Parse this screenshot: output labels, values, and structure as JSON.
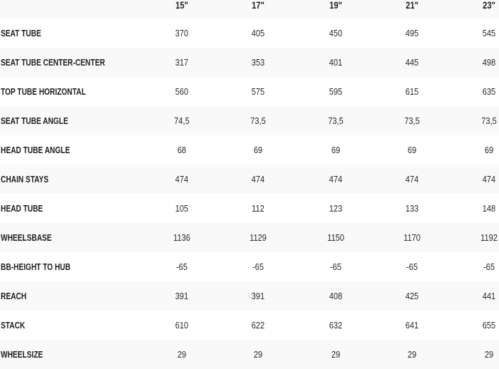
{
  "sizes": [
    "15\"",
    "17\"",
    "19\"",
    "21\"",
    "23\""
  ],
  "rows": [
    {
      "label": "SEAT TUBE",
      "values": [
        "370",
        "405",
        "450",
        "495",
        "545"
      ]
    },
    {
      "label": "SEAT TUBE CENTER-CENTER",
      "values": [
        "317",
        "353",
        "401",
        "445",
        "498"
      ]
    },
    {
      "label": "TOP TUBE HORIZONTAL",
      "values": [
        "560",
        "575",
        "595",
        "615",
        "635"
      ]
    },
    {
      "label": "SEAT TUBE ANGLE",
      "values": [
        "74,5",
        "73,5",
        "73,5",
        "73,5",
        "73,5"
      ]
    },
    {
      "label": "HEAD TUBE ANGLE",
      "values": [
        "68",
        "69",
        "69",
        "69",
        "69"
      ]
    },
    {
      "label": "CHAIN STAYS",
      "values": [
        "474",
        "474",
        "474",
        "474",
        "474"
      ]
    },
    {
      "label": "HEAD TUBE",
      "values": [
        "105",
        "112",
        "123",
        "133",
        "148"
      ]
    },
    {
      "label": "WHEELSBASE",
      "values": [
        "1136",
        "1129",
        "1150",
        "1170",
        "1192"
      ]
    },
    {
      "label": "BB-HEIGHT TO HUB",
      "values": [
        "-65",
        "-65",
        "-65",
        "-65",
        "-65"
      ]
    },
    {
      "label": "REACH",
      "values": [
        "391",
        "391",
        "408",
        "425",
        "441"
      ]
    },
    {
      "label": "STACK",
      "values": [
        "610",
        "622",
        "632",
        "641",
        "655"
      ]
    },
    {
      "label": "WHEELSIZE",
      "values": [
        "29",
        "29",
        "29",
        "29",
        "29"
      ]
    }
  ]
}
